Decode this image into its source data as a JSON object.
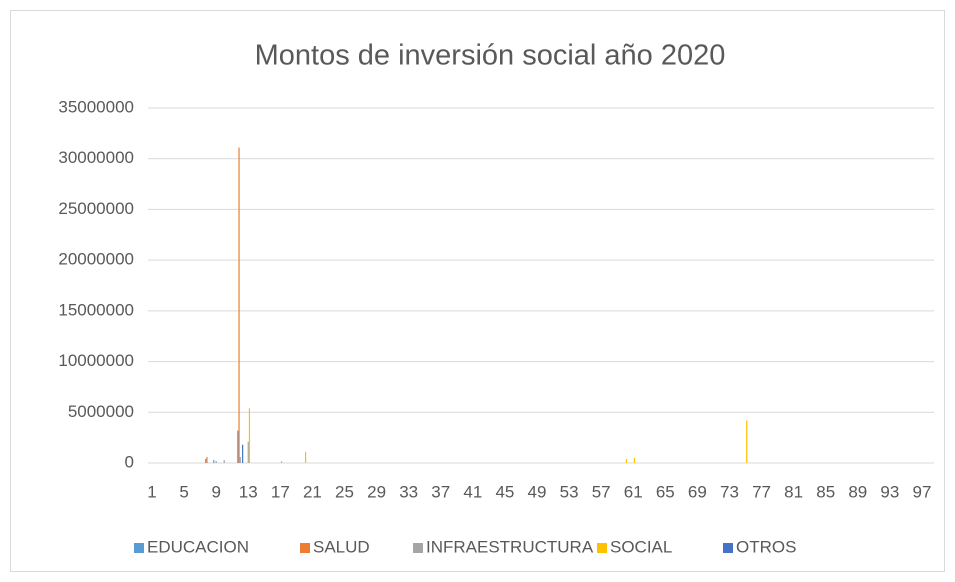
{
  "chart_data": {
    "type": "bar",
    "title": "Montos de inversión social año 2020",
    "categories": [
      1,
      null,
      null,
      null,
      5,
      null,
      null,
      null,
      9,
      null,
      null,
      null,
      13,
      null,
      null,
      null,
      17,
      null,
      null,
      null,
      21,
      null,
      null,
      null,
      25,
      null,
      null,
      null,
      29,
      null,
      null,
      null,
      33,
      null,
      null,
      null,
      37,
      null,
      null,
      null,
      41,
      null,
      null,
      null,
      45,
      null,
      null,
      null,
      49,
      null,
      null,
      null,
      53,
      null,
      null,
      null,
      57,
      null,
      null,
      null,
      61,
      null,
      null,
      null,
      65,
      null,
      null,
      null,
      69,
      null,
      null,
      null,
      73,
      null,
      null,
      null,
      77,
      null,
      null,
      null,
      81,
      null,
      null,
      null,
      85,
      null,
      null,
      null,
      89,
      null,
      null,
      null,
      93,
      null,
      null,
      null,
      97,
      null
    ],
    "series": [
      {
        "name": "EDUCACION",
        "color": "#5b9bd5",
        "values": [
          0,
          0,
          0,
          0,
          0,
          0,
          0,
          400000,
          300000,
          0,
          0,
          3200000,
          0,
          0,
          0,
          0,
          0,
          0,
          0,
          0,
          0,
          0,
          0,
          0,
          0,
          0,
          0,
          0,
          0,
          0,
          0,
          0,
          0,
          0,
          0,
          0,
          0,
          0,
          0,
          0,
          0,
          0,
          0,
          0,
          0,
          0,
          0,
          0,
          0,
          0,
          0,
          0,
          0,
          0,
          0,
          0,
          0,
          0,
          0,
          0,
          0,
          0,
          0,
          0,
          0,
          0,
          0,
          0,
          0,
          0,
          0,
          0,
          0,
          0,
          0,
          0,
          0,
          0,
          0,
          0,
          0,
          0,
          0,
          0,
          0,
          0,
          0,
          0,
          0,
          0,
          0,
          0,
          0,
          0,
          0,
          0,
          0,
          0
        ]
      },
      {
        "name": "SALUD",
        "color": "#ed7d31",
        "values": [
          0,
          0,
          0,
          0,
          0,
          0,
          0,
          600000,
          0,
          0,
          0,
          31100000,
          0,
          0,
          0,
          0,
          0,
          0,
          0,
          0,
          0,
          0,
          0,
          0,
          0,
          0,
          0,
          0,
          0,
          0,
          0,
          0,
          0,
          0,
          0,
          0,
          0,
          0,
          0,
          0,
          0,
          0,
          0,
          0,
          0,
          0,
          0,
          0,
          0,
          0,
          0,
          0,
          0,
          0,
          0,
          0,
          0,
          0,
          0,
          0,
          0,
          0,
          0,
          0,
          0,
          0,
          0,
          0,
          0,
          0,
          0,
          0,
          0,
          0,
          0,
          0,
          0,
          0,
          0,
          0,
          0,
          0,
          0,
          0,
          0,
          0,
          0,
          0,
          0,
          0,
          0,
          0,
          0,
          0,
          0,
          0,
          0,
          0
        ]
      },
      {
        "name": "INFRAESTRUCTURA",
        "color": "#a5a5a5",
        "values": [
          0,
          0,
          0,
          0,
          0,
          0,
          0,
          0,
          200000,
          300000,
          0,
          600000,
          2100000,
          0,
          0,
          0,
          0,
          0,
          0,
          0,
          0,
          0,
          0,
          0,
          0,
          0,
          0,
          0,
          0,
          0,
          0,
          0,
          0,
          0,
          0,
          0,
          0,
          0,
          0,
          0,
          0,
          0,
          0,
          0,
          0,
          0,
          0,
          0,
          0,
          0,
          0,
          0,
          0,
          0,
          0,
          0,
          0,
          0,
          0,
          0,
          0,
          0,
          0,
          0,
          0,
          0,
          0,
          0,
          0,
          0,
          0,
          0,
          0,
          0,
          0,
          0,
          0,
          0,
          0,
          0,
          0,
          0,
          0,
          0,
          0,
          0,
          0,
          0,
          0,
          0,
          0,
          0,
          0,
          0,
          0,
          0,
          0,
          0
        ]
      },
      {
        "name": "SOCIAL",
        "color": "#ffc000",
        "values": [
          0,
          0,
          0,
          0,
          0,
          0,
          0,
          0,
          0,
          0,
          0,
          0,
          5400000,
          0,
          0,
          0,
          200000,
          0,
          0,
          1100000,
          0,
          0,
          0,
          0,
          0,
          0,
          0,
          0,
          0,
          0,
          0,
          0,
          0,
          0,
          0,
          0,
          0,
          0,
          0,
          0,
          0,
          0,
          0,
          0,
          0,
          0,
          0,
          0,
          0,
          0,
          0,
          0,
          0,
          0,
          0,
          0,
          0,
          0,
          0,
          400000,
          500000,
          0,
          0,
          0,
          0,
          0,
          0,
          0,
          0,
          0,
          0,
          0,
          0,
          0,
          4200000,
          0,
          0,
          0,
          0,
          0,
          0,
          0,
          0,
          0,
          0,
          0,
          0,
          0,
          0,
          0,
          0,
          0,
          0,
          0,
          0,
          0,
          0,
          0
        ]
      },
      {
        "name": "OTROS",
        "color": "#4472c4",
        "values": [
          0,
          0,
          0,
          0,
          0,
          0,
          0,
          0,
          0,
          0,
          0,
          1800000,
          0,
          0,
          0,
          0,
          0,
          0,
          0,
          0,
          0,
          0,
          0,
          0,
          0,
          0,
          0,
          0,
          0,
          0,
          0,
          0,
          0,
          0,
          0,
          0,
          0,
          0,
          0,
          0,
          0,
          0,
          0,
          0,
          0,
          0,
          0,
          0,
          0,
          0,
          0,
          0,
          0,
          0,
          0,
          0,
          0,
          0,
          0,
          0,
          0,
          0,
          0,
          0,
          0,
          0,
          0,
          0,
          0,
          0,
          0,
          0,
          0,
          0,
          0,
          0,
          0,
          0,
          0,
          0,
          0,
          0,
          0,
          0,
          0,
          0,
          0,
          0,
          0,
          0,
          0,
          0,
          0,
          0,
          0,
          0,
          0,
          0
        ]
      }
    ],
    "ylim": [
      0,
      35000000
    ],
    "yticks": [
      0,
      5000000,
      10000000,
      15000000,
      20000000,
      25000000,
      30000000,
      35000000
    ],
    "grid": true,
    "legend": "bottom"
  }
}
